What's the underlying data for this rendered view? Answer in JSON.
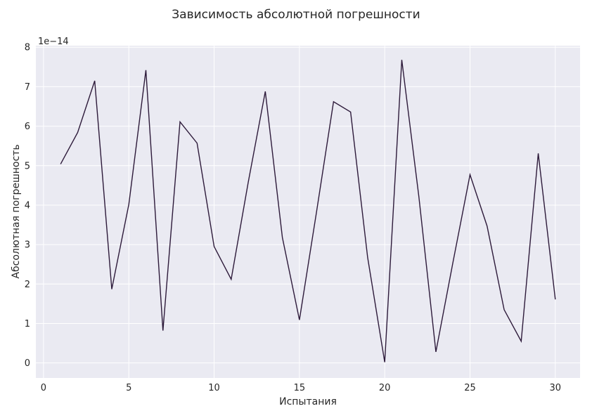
{
  "chart_data": {
    "type": "line",
    "title": "Зависимость абсолютной погрешности",
    "xlabel": "Испытания",
    "ylabel": "Абсолютная погрешность",
    "offset_label": "1e−14",
    "xlim": [
      -0.45,
      31.45
    ],
    "ylim": [
      -0.38,
      8.04
    ],
    "xticks": [
      0,
      5,
      10,
      15,
      20,
      25,
      30
    ],
    "yticks": [
      0,
      1,
      2,
      3,
      4,
      5,
      6,
      7,
      8
    ],
    "grid": true,
    "series": [
      {
        "name": "Абсолютная погрешность",
        "color": "#2d1a3a",
        "x": [
          1,
          2,
          3,
          4,
          5,
          6,
          7,
          8,
          9,
          10,
          11,
          12,
          13,
          14,
          15,
          16,
          17,
          18,
          19,
          20,
          21,
          22,
          23,
          24,
          25,
          26,
          27,
          28,
          29,
          30
        ],
        "y": [
          5.04,
          5.84,
          7.15,
          1.87,
          4.02,
          7.42,
          0.82,
          6.11,
          5.57,
          2.95,
          2.12,
          4.58,
          6.88,
          3.18,
          1.09,
          3.82,
          6.62,
          6.36,
          2.67,
          0.02,
          7.68,
          4.22,
          0.28,
          2.55,
          4.77,
          3.47,
          1.35,
          0.55,
          5.31,
          1.61
        ]
      }
    ]
  },
  "colors": {
    "plot_background": "#eaeaf2",
    "grid": "#ffffff",
    "line": "#2d1a3a"
  }
}
